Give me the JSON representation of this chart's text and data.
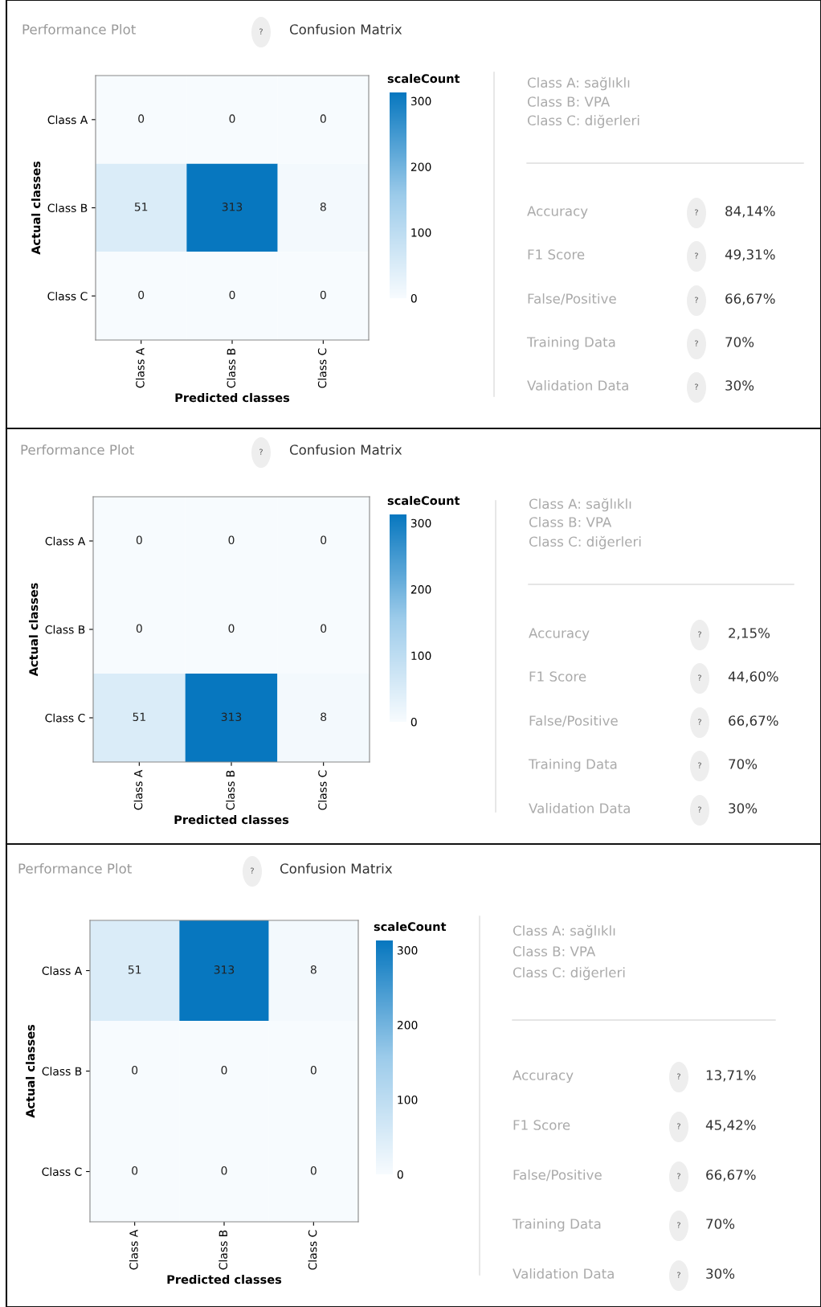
{
  "chart_data": [
    {
      "type": "heatmap",
      "title": "Confusion Matrix",
      "annotations": [
        "Performance Plot",
        "?"
      ],
      "xlabel": "Predicted classes",
      "ylabel": "Actual classes",
      "clabel": "scaleCount",
      "categories": [
        "Class A",
        "Class B",
        "Class C"
      ],
      "y_categories": [
        "Class A",
        "Class B",
        "Class C"
      ],
      "cells": [
        [
          0,
          0,
          0
        ],
        [
          51,
          313,
          8
        ],
        [
          0,
          0,
          0
        ]
      ],
      "data_labels": true,
      "clim": [
        0,
        313
      ],
      "cticks": [
        0,
        100,
        200,
        300
      ]
    },
    {
      "type": "other",
      "annotations": [
        "Class A: sağlıklı",
        "Class B: VPA",
        "Class C: diğerleri",
        "?",
        "?",
        "?",
        "?",
        "?"
      ],
      "categories": [
        "Accuracy",
        "F1 Score",
        "False/Positive",
        "Training Data",
        "Validation Data"
      ],
      "value_labels": [
        "84,14%",
        "49,31%",
        "66,67%",
        "70%",
        "30%"
      ]
    },
    {
      "type": "heatmap",
      "title": "Confusion Matrix",
      "annotations": [
        "Performance Plot",
        "?"
      ],
      "xlabel": "Predicted classes",
      "ylabel": "Actual classes",
      "clabel": "scaleCount",
      "categories": [
        "Class A",
        "Class B",
        "Class C"
      ],
      "y_categories": [
        "Class A",
        "Class B",
        "Class C"
      ],
      "cells": [
        [
          0,
          0,
          0
        ],
        [
          0,
          0,
          0
        ],
        [
          51,
          313,
          8
        ]
      ],
      "data_labels": true,
      "clim": [
        0,
        313
      ],
      "cticks": [
        0,
        100,
        200,
        300
      ]
    },
    {
      "type": "other",
      "annotations": [
        "Class A: sağlıklı",
        "Class B: VPA",
        "Class C: diğerleri",
        "?",
        "?",
        "?",
        "?",
        "?"
      ],
      "categories": [
        "Accuracy",
        "F1 Score",
        "False/Positive",
        "Training Data",
        "Validation Data"
      ],
      "value_labels": [
        "2,15%",
        "44,60%",
        "66,67%",
        "70%",
        "30%"
      ]
    },
    {
      "type": "heatmap",
      "title": "Confusion Matrix",
      "annotations": [
        "Performance Plot",
        "?"
      ],
      "xlabel": "Predicted classes",
      "ylabel": "Actual classes",
      "clabel": "scaleCount",
      "categories": [
        "Class A",
        "Class B",
        "Class C"
      ],
      "y_categories": [
        "Class A",
        "Class B",
        "Class C"
      ],
      "cells": [
        [
          51,
          313,
          8
        ],
        [
          0,
          0,
          0
        ],
        [
          0,
          0,
          0
        ]
      ],
      "data_labels": true,
      "clim": [
        0,
        313
      ],
      "cticks": [
        0,
        100,
        200,
        300
      ]
    },
    {
      "type": "other",
      "annotations": [
        "Class A: sağlıklı",
        "Class B: VPA",
        "Class C: diğerleri",
        "?",
        "?",
        "?",
        "?",
        "?"
      ],
      "categories": [
        "Accuracy",
        "F1 Score",
        "False/Positive",
        "Training Data",
        "Validation Data"
      ],
      "value_labels": [
        "13,71%",
        "45,42%",
        "66,67%",
        "70%",
        "30%"
      ]
    }
  ]
}
